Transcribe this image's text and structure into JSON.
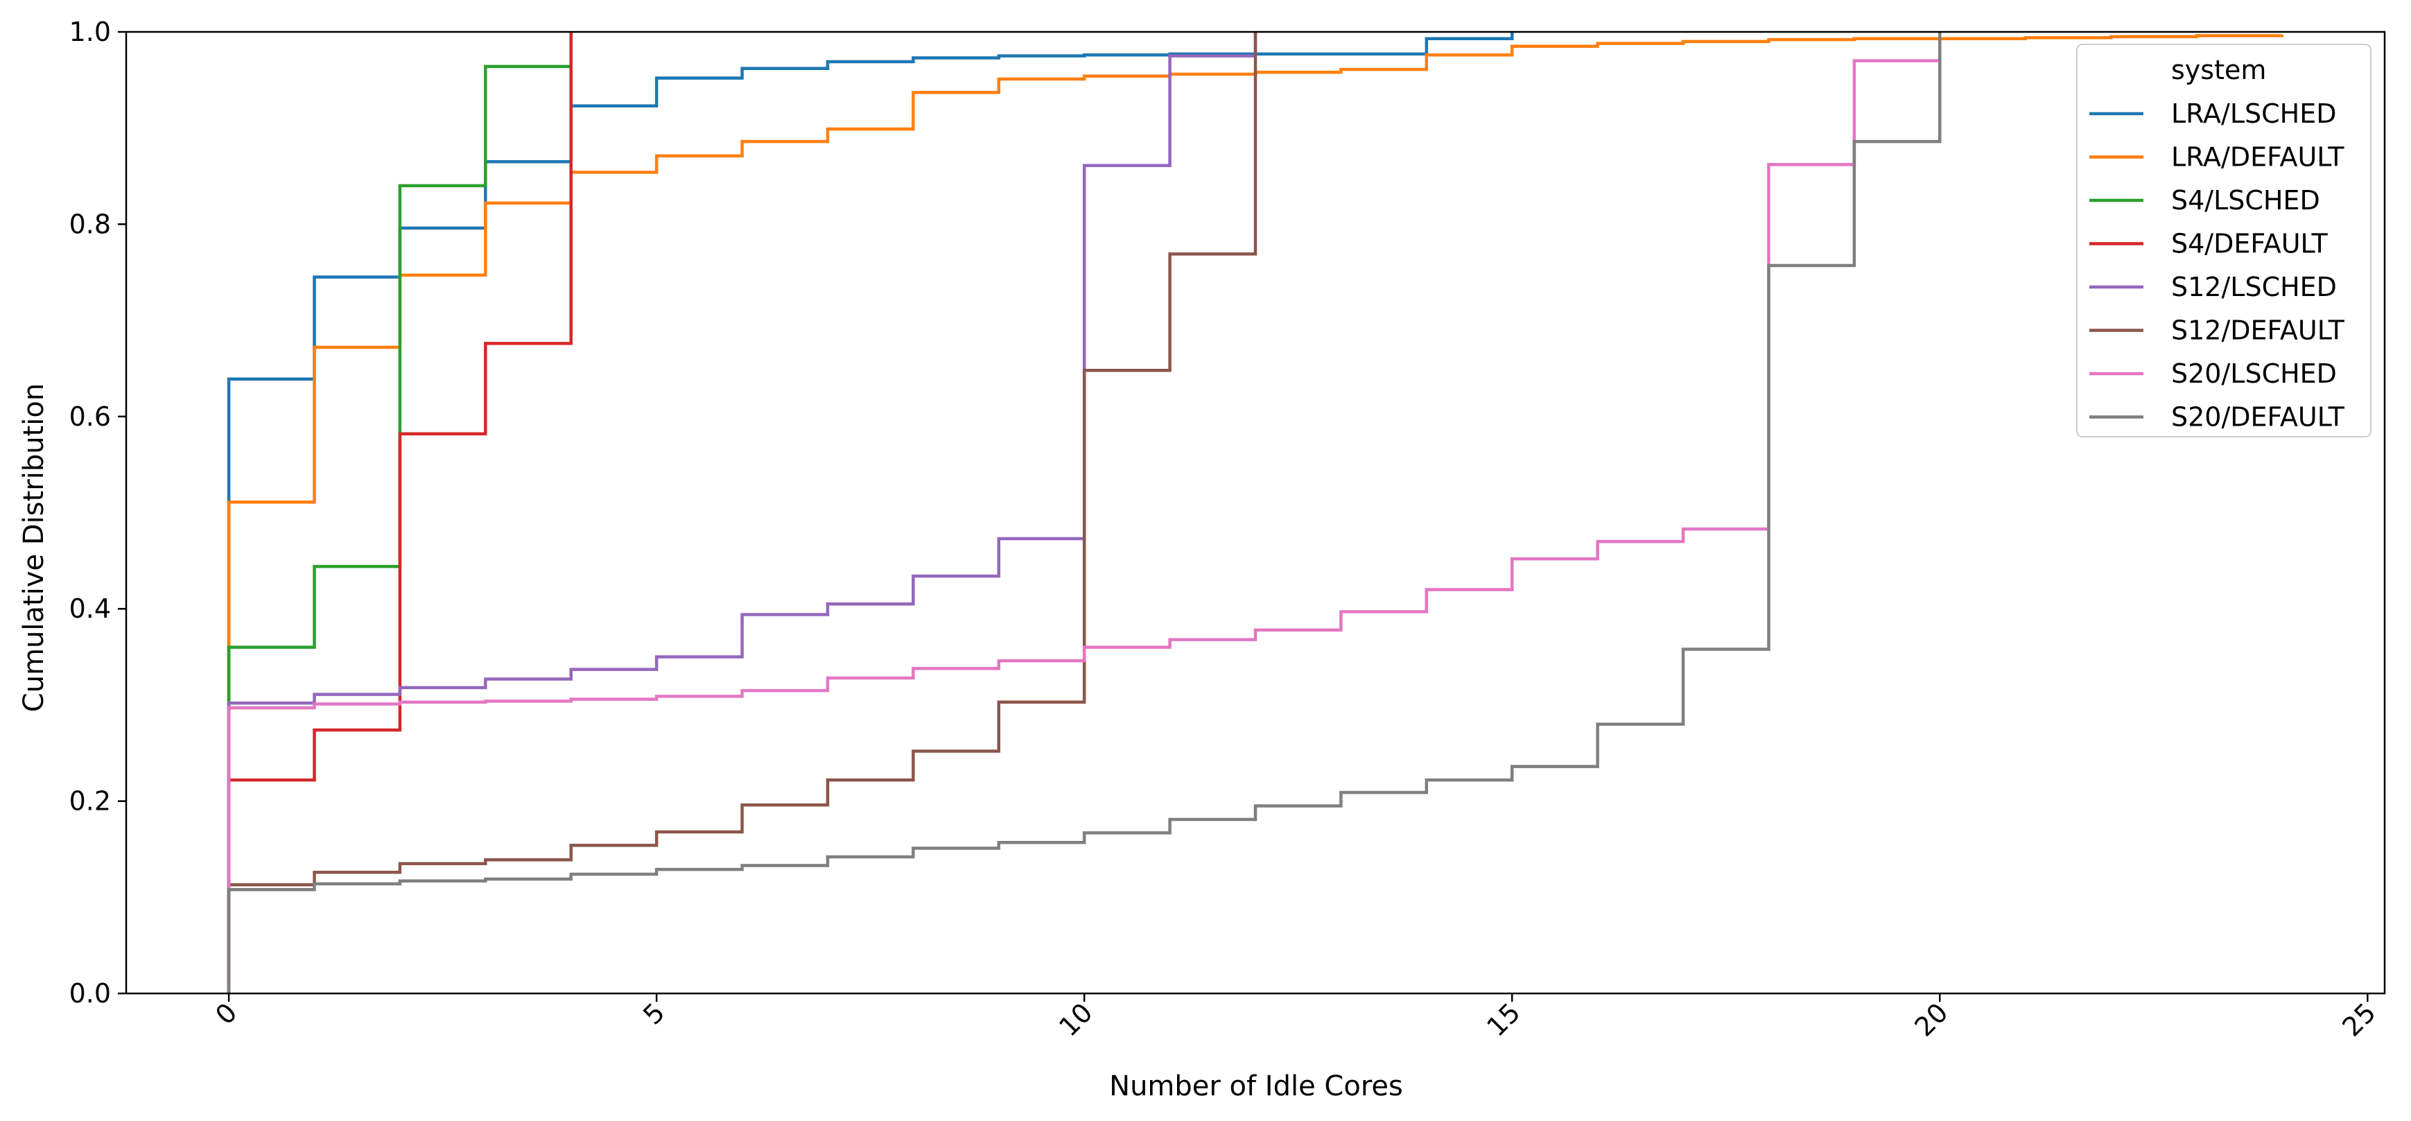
{
  "chart_data": {
    "type": "line",
    "step": "post",
    "xlabel": "Number of Idle Cores",
    "ylabel": "Cumulative Distribution",
    "xlim": [
      -1.2,
      25.2
    ],
    "ylim": [
      0.0,
      1.0
    ],
    "xticks": [
      0,
      5,
      10,
      15,
      20,
      25
    ],
    "xtick_labels": [
      "0",
      "5",
      "10",
      "15",
      "20",
      "25"
    ],
    "xtick_rotation": 45,
    "yticks": [
      0.0,
      0.2,
      0.4,
      0.6,
      0.8,
      1.0
    ],
    "ytick_labels": [
      "0.0",
      "0.2",
      "0.4",
      "0.6",
      "0.8",
      "1.0"
    ],
    "grid": false,
    "legend": {
      "title": "system",
      "placement": "top-right"
    },
    "series": [
      {
        "name": "LRA/LSCHED",
        "color": "#1f77b4",
        "x": [
          0,
          1,
          2,
          3,
          4,
          5,
          6,
          7,
          8,
          9,
          10,
          11,
          12,
          13,
          14,
          15
        ],
        "y": [
          0.639,
          0.745,
          0.796,
          0.865,
          0.923,
          0.952,
          0.962,
          0.969,
          0.973,
          0.975,
          0.976,
          0.977,
          0.977,
          0.977,
          0.993,
          1.0
        ]
      },
      {
        "name": "LRA/DEFAULT",
        "color": "#ff7f0e",
        "x": [
          0,
          1,
          2,
          3,
          4,
          5,
          6,
          7,
          8,
          9,
          10,
          11,
          12,
          13,
          14,
          15,
          16,
          17,
          18,
          19,
          20,
          21,
          22,
          23,
          24
        ],
        "y": [
          0.511,
          0.672,
          0.747,
          0.822,
          0.854,
          0.871,
          0.886,
          0.899,
          0.937,
          0.951,
          0.954,
          0.956,
          0.958,
          0.961,
          0.976,
          0.985,
          0.988,
          0.99,
          0.992,
          0.993,
          0.993,
          0.994,
          0.995,
          0.996,
          0.997
        ]
      },
      {
        "name": "S4/LSCHED",
        "color": "#2ca02c",
        "x": [
          0,
          1,
          2,
          3,
          4
        ],
        "y": [
          0.36,
          0.444,
          0.84,
          0.964,
          1.0
        ]
      },
      {
        "name": "S4/DEFAULT",
        "color": "#d62728",
        "x": [
          0,
          1,
          2,
          3,
          4
        ],
        "y": [
          0.222,
          0.274,
          0.582,
          0.676,
          1.0
        ]
      },
      {
        "name": "S12/LSCHED",
        "color": "#9467bd",
        "x": [
          0,
          1,
          2,
          3,
          4,
          5,
          6,
          7,
          8,
          9,
          10,
          11,
          12
        ],
        "y": [
          0.302,
          0.311,
          0.318,
          0.327,
          0.337,
          0.35,
          0.394,
          0.405,
          0.434,
          0.473,
          0.861,
          0.975,
          1.0
        ]
      },
      {
        "name": "S12/DEFAULT",
        "color": "#8c564b",
        "x": [
          0,
          1,
          2,
          3,
          4,
          5,
          6,
          7,
          8,
          9,
          10,
          11,
          12
        ],
        "y": [
          0.113,
          0.126,
          0.135,
          0.139,
          0.154,
          0.168,
          0.196,
          0.222,
          0.252,
          0.303,
          0.648,
          0.769,
          1.0
        ]
      },
      {
        "name": "S20/LSCHED",
        "color": "#e377c2",
        "x": [
          0,
          1,
          2,
          3,
          4,
          5,
          6,
          7,
          8,
          9,
          10,
          11,
          12,
          13,
          14,
          15,
          16,
          17,
          18,
          19,
          20
        ],
        "y": [
          0.297,
          0.301,
          0.303,
          0.304,
          0.306,
          0.309,
          0.315,
          0.328,
          0.338,
          0.346,
          0.36,
          0.368,
          0.378,
          0.397,
          0.42,
          0.452,
          0.47,
          0.483,
          0.862,
          0.97,
          1.0
        ]
      },
      {
        "name": "S20/DEFAULT",
        "color": "#7f7f7f",
        "x": [
          0,
          1,
          2,
          3,
          4,
          5,
          6,
          7,
          8,
          9,
          10,
          11,
          12,
          13,
          14,
          15,
          16,
          17,
          18,
          19,
          20
        ],
        "y": [
          0.108,
          0.114,
          0.117,
          0.119,
          0.124,
          0.129,
          0.133,
          0.142,
          0.151,
          0.157,
          0.167,
          0.181,
          0.195,
          0.209,
          0.222,
          0.236,
          0.28,
          0.358,
          0.757,
          0.886,
          1.0
        ]
      }
    ]
  }
}
